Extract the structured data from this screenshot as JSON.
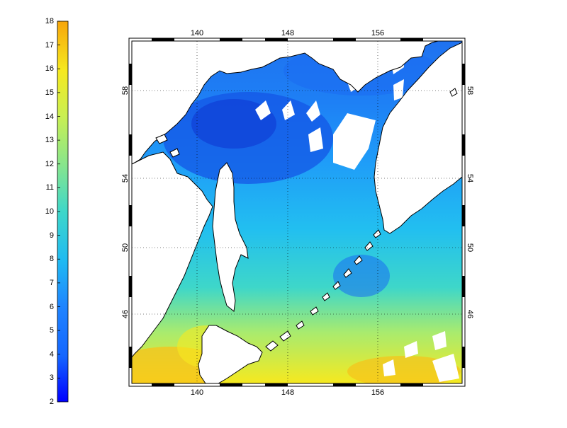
{
  "colorbar": {
    "ticks": [
      "2",
      "3",
      "4",
      "5",
      "6",
      "7",
      "8",
      "9",
      "10",
      "11",
      "12",
      "13",
      "14",
      "15",
      "16",
      "17",
      "18"
    ],
    "range": [
      2,
      18
    ],
    "colors": [
      "#0000ff",
      "#0a3cff",
      "#1466ff",
      "#1f84ff",
      "#23a2ff",
      "#20baf2",
      "#22cbe0",
      "#3ed7c9",
      "#62dfac",
      "#86e58e",
      "#a8eb6f",
      "#c9ef52",
      "#e6f035",
      "#f6e91f",
      "#fcd312",
      "#fdbb0e",
      "#f7a60b"
    ]
  },
  "map": {
    "x_ticks_top": [
      "140",
      "148",
      "156"
    ],
    "x_ticks_bottom": [
      "140",
      "148",
      "156"
    ],
    "y_ticks_left": [
      "58",
      "54",
      "50",
      "46"
    ],
    "y_ticks_right": [
      "58",
      "54",
      "50",
      "46"
    ],
    "lon_range": [
      134.5,
      164.5
    ],
    "lat_range": [
      42.5,
      60
    ]
  }
}
